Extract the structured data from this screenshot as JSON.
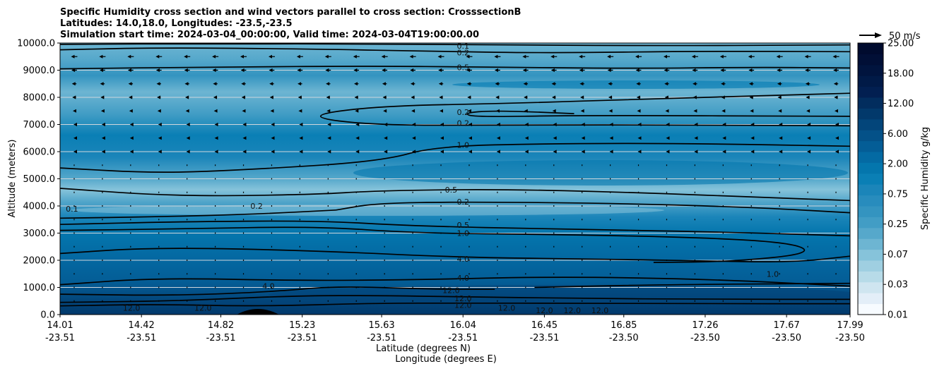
{
  "chart_data": {
    "type": "contour",
    "title_lines": [
      "Specific Humidity cross section and wind vectors parallel to cross section: CrosssectionB",
      "Latitudes: 14.0,18.0, Longitudes: -23.5,-23.5",
      "Simulation start time: 2024-03-04_00:00:00, Valid time: 2024-03-04T19:00:00.00"
    ],
    "ylabel": "Altitude (meters)",
    "xlabel_lat": "Latitude (degrees N)",
    "xlabel_lon": "Longitude (degrees E)",
    "ylim": [
      0,
      10000
    ],
    "y_ticks": [
      "0.0",
      "1000.0",
      "2000.0",
      "3000.0",
      "4000.0",
      "5000.0",
      "6000.0",
      "7000.0",
      "8000.0",
      "9000.0",
      "10000.0"
    ],
    "x_ticks": [
      {
        "lat": "14.01",
        "lon": "-23.51"
      },
      {
        "lat": "14.42",
        "lon": "-23.51"
      },
      {
        "lat": "14.82",
        "lon": "-23.51"
      },
      {
        "lat": "15.23",
        "lon": "-23.51"
      },
      {
        "lat": "15.63",
        "lon": "-23.51"
      },
      {
        "lat": "16.04",
        "lon": "-23.51"
      },
      {
        "lat": "16.45",
        "lon": "-23.51"
      },
      {
        "lat": "16.85",
        "lon": "-23.50"
      },
      {
        "lat": "17.26",
        "lon": "-23.50"
      },
      {
        "lat": "17.67",
        "lon": "-23.50"
      },
      {
        "lat": "17.99",
        "lon": "-23.50"
      }
    ],
    "grid": "horizontal",
    "colorbar": {
      "label": "Specific Humidity g/kg",
      "ticks": [
        "0.01",
        "0.03",
        "0.07",
        "0.25",
        "0.75",
        "2.00",
        "6.00",
        "12.00",
        "18.00",
        "25.00"
      ],
      "colors": [
        "#f7fbff",
        "#e3eef8",
        "#cfe5f0",
        "#b7dbe8",
        "#9fcfe1",
        "#86c3da",
        "#6db5d2",
        "#56a8cb",
        "#429dc5",
        "#3494c0",
        "#288cbd",
        "#1b85b9",
        "#0a7fb5",
        "#0476ad",
        "#046aa3",
        "#045d96",
        "#045188",
        "#03457a",
        "#02396b",
        "#022d5e",
        "#021f51",
        "#011a47",
        "#01143e",
        "#010f36",
        "#000b2e"
      ]
    },
    "wind_reference": {
      "label": "50 m/s",
      "speed": 50
    },
    "contour_labels": [
      {
        "text": "0.1",
        "lat": 16.04,
        "alt": 9900
      },
      {
        "text": "0.2",
        "lat": 16.04,
        "alt": 9650
      },
      {
        "text": "0.5",
        "lat": 16.04,
        "alt": 9100
      },
      {
        "text": "0.2",
        "lat": 16.04,
        "alt": 7450
      },
      {
        "text": "0.2",
        "lat": 16.04,
        "alt": 7050
      },
      {
        "text": "1.0",
        "lat": 16.04,
        "alt": 6250
      },
      {
        "text": "0.5",
        "lat": 15.98,
        "alt": 4600
      },
      {
        "text": "0.2",
        "lat": 16.04,
        "alt": 4150
      },
      {
        "text": "0.5",
        "lat": 16.04,
        "alt": 3300
      },
      {
        "text": "1.0",
        "lat": 16.04,
        "alt": 3000
      },
      {
        "text": "4.0",
        "lat": 16.04,
        "alt": 2050
      },
      {
        "text": "4.0",
        "lat": 16.04,
        "alt": 1350
      },
      {
        "text": "12.0",
        "lat": 15.98,
        "alt": 900
      },
      {
        "text": "12.0",
        "lat": 16.04,
        "alt": 600
      },
      {
        "text": "12.0",
        "lat": 16.04,
        "alt": 350
      },
      {
        "text": "0.1",
        "lat": 14.07,
        "alt": 3900
      },
      {
        "text": "0.2",
        "lat": 15.0,
        "alt": 4000
      },
      {
        "text": "4.0",
        "lat": 15.06,
        "alt": 1050
      },
      {
        "text": "12.0",
        "lat": 14.37,
        "alt": 250
      },
      {
        "text": "12.0",
        "lat": 14.73,
        "alt": 250
      },
      {
        "text": "12.0",
        "lat": 16.26,
        "alt": 250
      },
      {
        "text": "12.0",
        "lat": 16.45,
        "alt": 150
      },
      {
        "text": "12.0",
        "lat": 16.59,
        "alt": 150
      },
      {
        "text": "12.0",
        "lat": 16.73,
        "alt": 150
      },
      {
        "text": "1.0",
        "lat": 17.6,
        "alt": 1500
      }
    ],
    "contour_lines": [
      {
        "level": "0.1",
        "points": [
          [
            14.01,
            9950
          ],
          [
            14.8,
            9980
          ],
          [
            15.6,
            9960
          ],
          [
            16.1,
            9940
          ],
          [
            17.0,
            9900
          ],
          [
            17.99,
            9930
          ]
        ]
      },
      {
        "level": "0.2",
        "points": [
          [
            14.01,
            9750
          ],
          [
            14.5,
            9830
          ],
          [
            15.3,
            9780
          ],
          [
            15.9,
            9690
          ],
          [
            16.5,
            9630
          ],
          [
            17.2,
            9700
          ],
          [
            17.99,
            9680
          ]
        ]
      },
      {
        "level": "0.5",
        "points": [
          [
            14.01,
            9050
          ],
          [
            14.8,
            9120
          ],
          [
            15.6,
            9150
          ],
          [
            16.1,
            9120
          ],
          [
            16.9,
            9060
          ],
          [
            17.5,
            9110
          ],
          [
            17.99,
            9080
          ]
        ]
      },
      {
        "level": "0.2",
        "points": [
          [
            17.99,
            8150
          ],
          [
            17.0,
            7950
          ],
          [
            16.3,
            7780
          ],
          [
            15.6,
            7680
          ],
          [
            15.23,
            7300
          ],
          [
            15.6,
            6960
          ],
          [
            16.3,
            6990
          ],
          [
            17.2,
            6980
          ],
          [
            17.99,
            6950
          ]
        ]
      },
      {
        "level": "0.2",
        "points": [
          [
            16.6,
            7400
          ],
          [
            16.2,
            7520
          ],
          [
            16.04,
            7420
          ],
          [
            16.1,
            7270
          ],
          [
            16.6,
            7340
          ],
          [
            17.99,
            7300
          ]
        ]
      },
      {
        "level": "1.0",
        "points": [
          [
            14.01,
            5400
          ],
          [
            14.5,
            5200
          ],
          [
            15.0,
            5350
          ],
          [
            15.63,
            5650
          ],
          [
            15.9,
            6200
          ],
          [
            16.5,
            6300
          ],
          [
            17.2,
            6300
          ],
          [
            17.99,
            6200
          ]
        ]
      },
      {
        "level": "0.5",
        "points": [
          [
            14.01,
            4650
          ],
          [
            14.6,
            4350
          ],
          [
            15.3,
            4420
          ],
          [
            15.6,
            4560
          ],
          [
            16.2,
            4620
          ],
          [
            16.9,
            4500
          ],
          [
            17.6,
            4300
          ],
          [
            17.99,
            4200
          ]
        ]
      },
      {
        "level": "0.2",
        "points": [
          [
            15.4,
            3850
          ],
          [
            15.6,
            4100
          ],
          [
            16.04,
            4150
          ],
          [
            16.8,
            4100
          ],
          [
            17.5,
            3950
          ],
          [
            17.99,
            3750
          ]
        ]
      },
      {
        "level": "0.2",
        "points": [
          [
            14.01,
            3550
          ],
          [
            14.5,
            3600
          ],
          [
            15.0,
            3700
          ],
          [
            15.4,
            3850
          ]
        ]
      },
      {
        "level": "0.5",
        "points": [
          [
            14.01,
            3320
          ],
          [
            14.6,
            3420
          ],
          [
            15.3,
            3460
          ],
          [
            15.8,
            3260
          ],
          [
            16.5,
            3150
          ],
          [
            17.3,
            3050
          ],
          [
            17.99,
            2900
          ]
        ]
      },
      {
        "level": "1.0",
        "points": [
          [
            14.01,
            3100
          ],
          [
            14.6,
            3150
          ],
          [
            15.3,
            3250
          ],
          [
            15.8,
            3000
          ],
          [
            16.5,
            2950
          ],
          [
            17.2,
            2850
          ],
          [
            17.7,
            2650
          ],
          [
            17.8,
            2250
          ],
          [
            17.4,
            1950
          ],
          [
            17.0,
            1920
          ]
        ]
      },
      {
        "level": "4.0",
        "points": [
          [
            14.01,
            2250
          ],
          [
            14.5,
            2480
          ],
          [
            15.3,
            2350
          ],
          [
            16.04,
            2100
          ],
          [
            16.7,
            2050
          ],
          [
            17.2,
            1980
          ],
          [
            17.7,
            1920
          ],
          [
            17.99,
            2150
          ]
        ]
      },
      {
        "level": "4.0",
        "points": [
          [
            14.01,
            1100
          ],
          [
            14.5,
            1350
          ],
          [
            15.2,
            1250
          ],
          [
            15.8,
            1280
          ],
          [
            16.5,
            1400
          ],
          [
            17.3,
            1300
          ],
          [
            17.99,
            1050
          ]
        ]
      },
      {
        "level": "12.0",
        "points": [
          [
            14.01,
            750
          ],
          [
            14.6,
            700
          ],
          [
            15.1,
            850
          ],
          [
            15.4,
            1050
          ],
          [
            15.9,
            930
          ],
          [
            16.2,
            930
          ]
        ]
      },
      {
        "level": "12.0",
        "points": [
          [
            16.4,
            1000
          ],
          [
            17.0,
            1100
          ],
          [
            17.99,
            1150
          ]
        ]
      },
      {
        "level": "12.0",
        "points": [
          [
            14.01,
            450
          ],
          [
            14.6,
            500
          ],
          [
            15.2,
            700
          ],
          [
            15.63,
            700
          ],
          [
            16.04,
            650
          ],
          [
            16.6,
            600
          ],
          [
            17.3,
            560
          ],
          [
            17.99,
            560
          ]
        ]
      },
      {
        "level": "12.0",
        "points": [
          [
            14.01,
            320
          ],
          [
            14.5,
            380
          ],
          [
            15.0,
            300
          ],
          [
            15.6,
            420
          ],
          [
            16.04,
            420
          ],
          [
            16.6,
            420
          ],
          [
            17.2,
            400
          ],
          [
            17.99,
            400
          ]
        ]
      }
    ]
  }
}
